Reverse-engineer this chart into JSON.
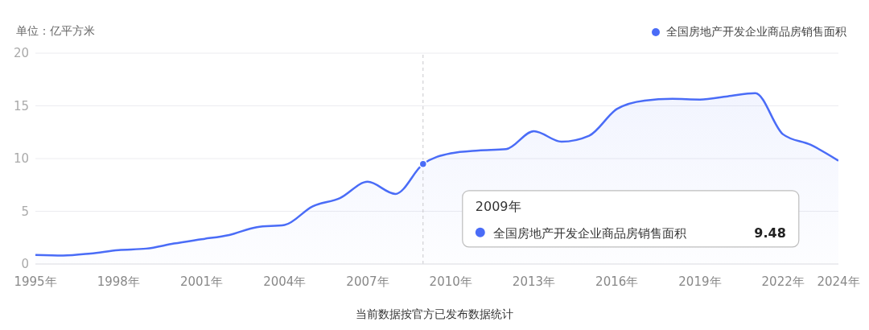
{
  "chart_data": {
    "type": "area",
    "ylabel": "单位：亿平方米",
    "x": [
      1995,
      1996,
      1997,
      1998,
      1999,
      2000,
      2001,
      2002,
      2003,
      2004,
      2005,
      2006,
      2007,
      2008,
      2009,
      2010,
      2011,
      2012,
      2013,
      2014,
      2015,
      2016,
      2017,
      2018,
      2019,
      2020,
      2021,
      2022,
      2023,
      2024
    ],
    "series": [
      {
        "name": "全国房地产开发企业商品房销售面积",
        "color": "#4a6cf7",
        "values": [
          0.86,
          0.8,
          1.0,
          1.32,
          1.46,
          1.94,
          2.35,
          2.75,
          3.5,
          3.7,
          5.45,
          6.25,
          7.8,
          6.65,
          9.48,
          10.5,
          10.77,
          10.9,
          12.6,
          11.6,
          12.17,
          14.7,
          15.5,
          15.66,
          15.6,
          15.9,
          16.2,
          12.3,
          11.3,
          9.8
        ]
      }
    ],
    "xlim": [
      1995,
      2024
    ],
    "xticks": [
      {
        "value": 1995,
        "label": "1995年"
      },
      {
        "value": 1998,
        "label": "1998年"
      },
      {
        "value": 2001,
        "label": "2001年"
      },
      {
        "value": 2004,
        "label": "2004年"
      },
      {
        "value": 2007,
        "label": "2007年"
      },
      {
        "value": 2010,
        "label": "2010年"
      },
      {
        "value": 2013,
        "label": "2013年"
      },
      {
        "value": 2016,
        "label": "2016年"
      },
      {
        "value": 2019,
        "label": "2019年"
      },
      {
        "value": 2022,
        "label": "2022年"
      },
      {
        "value": 2024,
        "label": "2024年"
      }
    ],
    "ylim": [
      0,
      20
    ],
    "yticks": [
      0,
      5,
      10,
      15,
      20
    ],
    "grid": "y",
    "legend": "top right",
    "marker": "none",
    "line_style": "solid",
    "ref_lines": [
      {
        "axis": "x",
        "value": 2009,
        "color": "#c8c8cc",
        "line_style": "dashed"
      }
    ],
    "annotations": [
      "2009年",
      "全国房地产开发企业商品房销售面积",
      "9.48",
      "当前数据按官方已发布数据统计"
    ]
  }
}
